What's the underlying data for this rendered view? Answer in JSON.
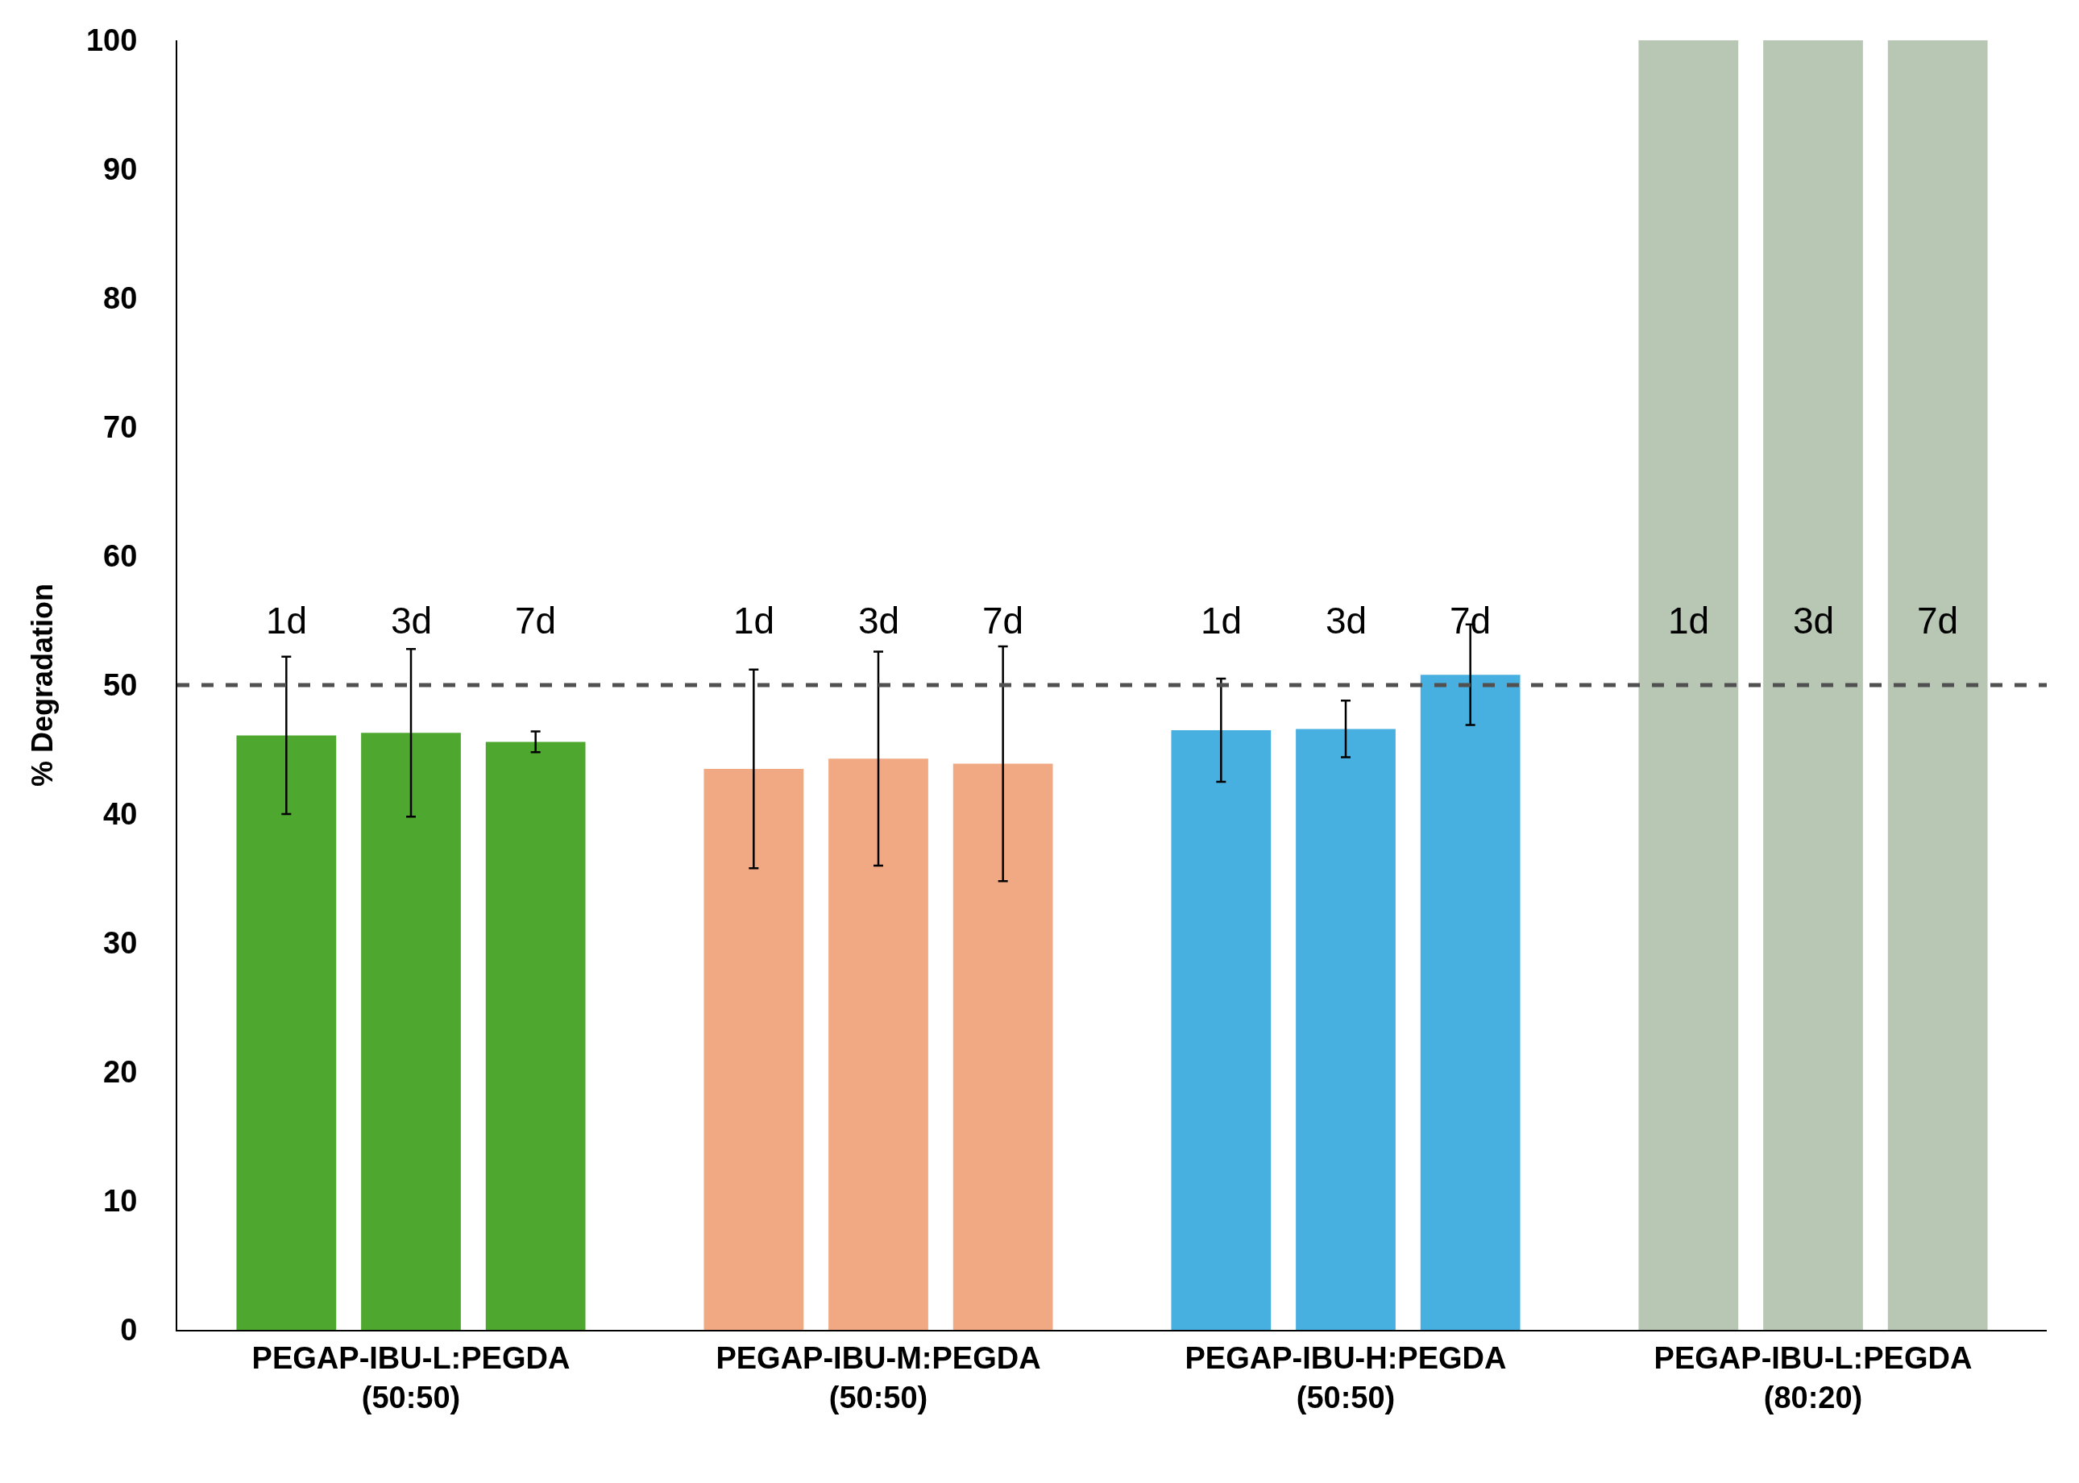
{
  "chart_data": {
    "type": "bar",
    "ylabel": "% Degradation",
    "categories": [
      "PEGAP-IBU-L:PEGDA\n(50:50)",
      "PEGAP-IBU-M:PEGDA\n(50:50)",
      "PEGAP-IBU-H:PEGDA\n(50:50)",
      "PEGAP-IBU-L:PEGDA\n(80:20)"
    ],
    "series": [
      {
        "name": "1d",
        "colors": [
          "#4ea72e",
          "#f1a983",
          "#47b0e0",
          "#b7c7b4"
        ],
        "values": [
          46.1,
          43.5,
          46.5,
          100
        ],
        "errors": [
          6.1,
          7.7,
          4.0,
          null
        ]
      },
      {
        "name": "3d",
        "colors": [
          "#4ea72e",
          "#f1a983",
          "#47b0e0",
          "#b7c7b4"
        ],
        "values": [
          46.3,
          44.3,
          46.6,
          100
        ],
        "errors": [
          6.5,
          8.3,
          2.2,
          null
        ]
      },
      {
        "name": "7d",
        "colors": [
          "#4ea72e",
          "#f1a983",
          "#47b0e0",
          "#b7c7b4"
        ],
        "values": [
          45.6,
          43.9,
          50.8,
          100
        ],
        "errors": [
          0.8,
          9.1,
          3.9,
          null
        ]
      }
    ],
    "ylim": [
      0,
      100
    ],
    "yticks": [
      0,
      10,
      20,
      30,
      40,
      50,
      60,
      70,
      80,
      90,
      100
    ],
    "ref_lines": [
      {
        "axis": "y",
        "value": 50,
        "color": "#505050",
        "line_style": "dashed"
      }
    ],
    "grid": false,
    "legend": false
  }
}
